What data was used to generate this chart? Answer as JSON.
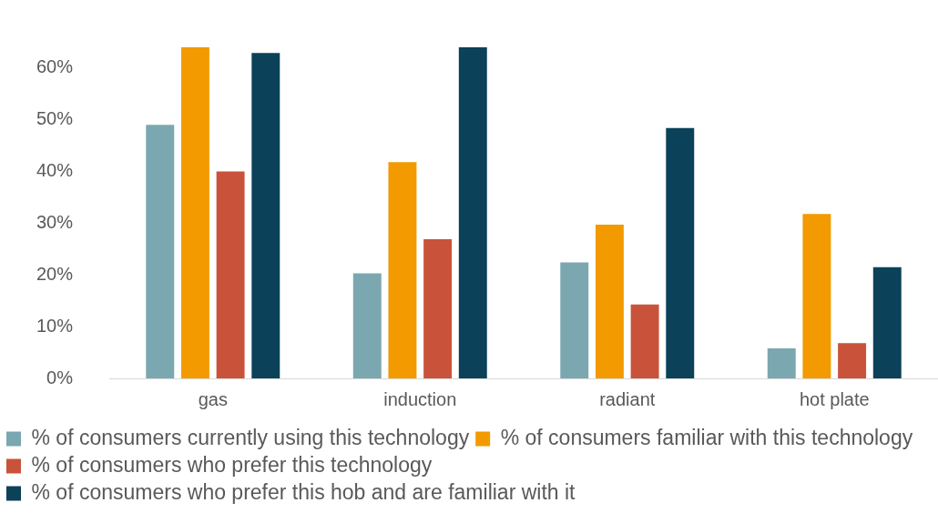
{
  "chart_data": {
    "type": "bar",
    "categories": [
      "gas",
      "induction",
      "radiant",
      "hot plate"
    ],
    "series": [
      {
        "name": "% of consumers currently using this technology",
        "color": "#7ba7b0",
        "values": [
          49,
          20.3,
          22.4,
          5.8
        ]
      },
      {
        "name": "% of consumers familiar with this technology",
        "color": "#f29a00",
        "values": [
          64,
          41.8,
          29.7,
          31.8
        ]
      },
      {
        "name": "% of consumers who prefer this technology",
        "color": "#c9533a",
        "values": [
          40,
          26.9,
          14.3,
          6.8
        ]
      },
      {
        "name": "% of consumers who prefer this hob and are familiar with it",
        "color": "#0b4159",
        "values": [
          62.9,
          64,
          48.4,
          21.5
        ]
      }
    ],
    "ylim": [
      0,
      64
    ],
    "yticks": [
      {
        "value": 0,
        "label": "0%"
      },
      {
        "value": 10,
        "label": "10%"
      },
      {
        "value": 20,
        "label": "20%"
      },
      {
        "value": 30,
        "label": "30%"
      },
      {
        "value": 40,
        "label": "40%"
      },
      {
        "value": 50,
        "label": "50%"
      },
      {
        "value": 60,
        "label": "60%"
      }
    ],
    "grid": false,
    "legend": "bottom"
  }
}
